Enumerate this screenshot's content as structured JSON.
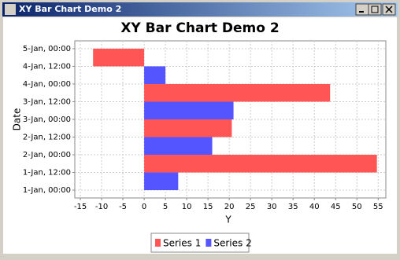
{
  "window_title": "XY Bar Chart Demo 2",
  "chart_data": {
    "type": "bar",
    "orientation": "horizontal",
    "title": "XY Bar Chart Demo 2",
    "x_label": "Y",
    "y_label": "Date",
    "series": [
      {
        "name": "Series 1",
        "color": "#ff5555",
        "values": [
          null,
          54.7,
          null,
          20.6,
          null,
          43.7,
          null,
          -12
        ]
      },
      {
        "name": "Series 2",
        "color": "#5555ff",
        "values": [
          8,
          null,
          16,
          null,
          21,
          null,
          5,
          null
        ]
      }
    ],
    "xlim": [
      -16.3,
      56.8
    ],
    "xticks": [
      -15,
      -10,
      -5,
      0,
      5,
      10,
      15,
      20,
      25,
      30,
      35,
      40,
      45,
      50,
      55
    ],
    "ylim": [
      -5.3,
      101.3
    ],
    "yticks": [
      {
        "value": 0,
        "label": "1-Jan, 00:00"
      },
      {
        "value": 12,
        "label": "1-Jan, 12:00"
      },
      {
        "value": 24,
        "label": "2-Jan, 00:00"
      },
      {
        "value": 36,
        "label": "2-Jan, 12:00"
      },
      {
        "value": 48,
        "label": "3-Jan, 00:00"
      },
      {
        "value": 60,
        "label": "3-Jan, 12:00"
      },
      {
        "value": 72,
        "label": "4-Jan, 00:00"
      },
      {
        "value": 84,
        "label": "4-Jan, 12:00"
      },
      {
        "value": 96,
        "label": "5-Jan, 00:00"
      }
    ],
    "grid": true,
    "legend": "bottom"
  }
}
